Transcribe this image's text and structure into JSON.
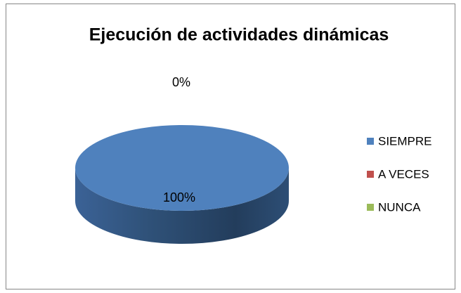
{
  "chart_data": {
    "type": "pie",
    "title": "Ejecución de actividades dinámicas",
    "categories": [
      "SIEMPRE",
      "A VECES",
      "NUNCA"
    ],
    "values": [
      100,
      0,
      0
    ],
    "value_labels": [
      "100%",
      "0%",
      null
    ],
    "colors": [
      "#4f81bd",
      "#c0504d",
      "#9bbb59"
    ],
    "legend": "right"
  }
}
